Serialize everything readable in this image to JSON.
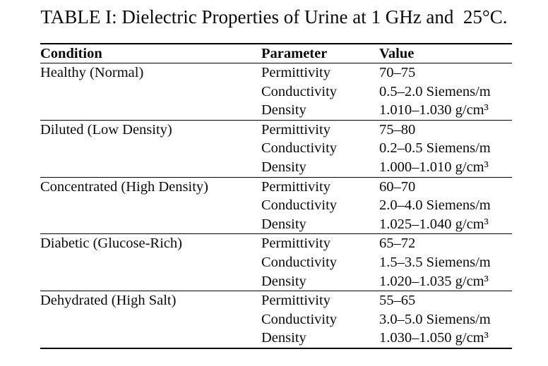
{
  "title": "TABLE I: Dielectric Properties of Urine at 1 GHz and  25°C.",
  "table": {
    "columns": [
      "Condition",
      "Parameter",
      "Value"
    ],
    "groups": [
      {
        "condition": "Healthy (Normal)",
        "rows": [
          {
            "parameter": "Permittivity",
            "value": "70–75"
          },
          {
            "parameter": "Conductivity",
            "value": "0.5–2.0 Siemens/m"
          },
          {
            "parameter": "Density",
            "value": "1.010–1.030 g/cm³"
          }
        ]
      },
      {
        "condition": "Diluted (Low Density)",
        "rows": [
          {
            "parameter": "Permittivity",
            "value": "75–80"
          },
          {
            "parameter": "Conductivity",
            "value": "0.2–0.5 Siemens/m"
          },
          {
            "parameter": "Density",
            "value": "1.000–1.010 g/cm³"
          }
        ]
      },
      {
        "condition": "Concentrated (High Density)",
        "rows": [
          {
            "parameter": "Permittivity",
            "value": "60–70"
          },
          {
            "parameter": "Conductivity",
            "value": "2.0–4.0 Siemens/m"
          },
          {
            "parameter": "Density",
            "value": "1.025–1.040 g/cm³"
          }
        ]
      },
      {
        "condition": "Diabetic (Glucose-Rich)",
        "rows": [
          {
            "parameter": "Permittivity",
            "value": "65–72"
          },
          {
            "parameter": "Conductivity",
            "value": "1.5–3.5 Siemens/m"
          },
          {
            "parameter": "Density",
            "value": "1.020–1.035 g/cm³"
          }
        ]
      },
      {
        "condition": "Dehydrated (High Salt)",
        "rows": [
          {
            "parameter": "Permittivity",
            "value": "55–65"
          },
          {
            "parameter": "Conductivity",
            "value": "3.0–5.0 Siemens/m"
          },
          {
            "parameter": "Density",
            "value": "1.030–1.050 g/cm³"
          }
        ]
      }
    ]
  }
}
